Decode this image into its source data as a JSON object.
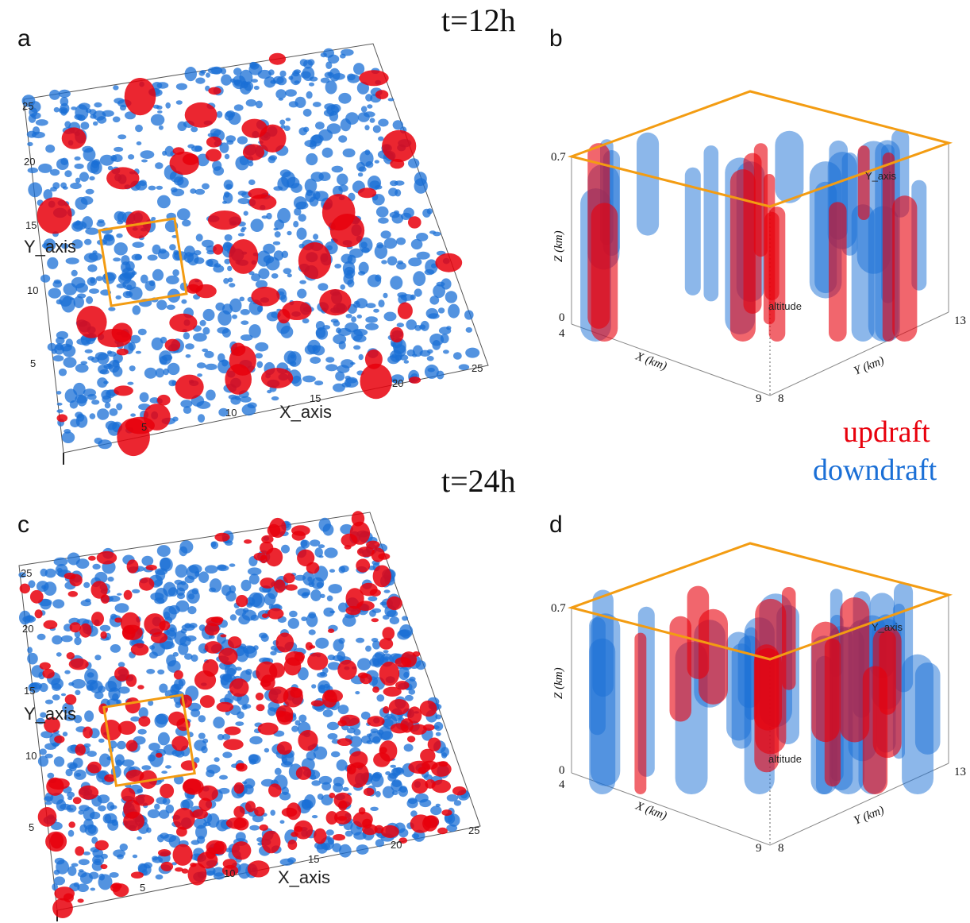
{
  "colors": {
    "updraft": "#e8000c",
    "downdraft": "#1a6fd6",
    "box": "#f39c12"
  },
  "time_labels": {
    "top": "t=12h",
    "bottom": "t=24h"
  },
  "legend": {
    "updraft": "updraft",
    "downdraft": "downdraft"
  },
  "panels": {
    "a": {
      "letter": "a",
      "x_axis_title": "X_axis",
      "y_axis_title": "Y_axis",
      "x_ticks": [
        "5",
        "10",
        "15",
        "20",
        "25"
      ],
      "y_ticks": [
        "5",
        "10",
        "15",
        "20",
        "25"
      ]
    },
    "b": {
      "letter": "b",
      "z_label": "Z (km)",
      "x_label": "X (km)",
      "y_label": "Y (km)",
      "z_ticks": [
        "0",
        "0.7"
      ],
      "x_ticks": [
        "4",
        "9"
      ],
      "y_ticks": [
        "8",
        "13"
      ],
      "inner_label": "altitude",
      "inner_axis": "Y_axis"
    },
    "c": {
      "letter": "c",
      "x_axis_title": "X_axis",
      "y_axis_title": "Y_axis",
      "x_ticks": [
        "5",
        "10",
        "15",
        "20",
        "25"
      ],
      "y_ticks": [
        "5",
        "10",
        "15",
        "20",
        "25"
      ]
    },
    "d": {
      "letter": "d",
      "z_label": "Z (km)",
      "x_label": "X (km)",
      "y_label": "Y (km)",
      "z_ticks": [
        "0",
        "0.7"
      ],
      "x_ticks": [
        "4",
        "9"
      ],
      "y_ticks": [
        "8",
        "13"
      ],
      "inner_label": "altitude",
      "inner_axis": "Y_axis"
    }
  }
}
